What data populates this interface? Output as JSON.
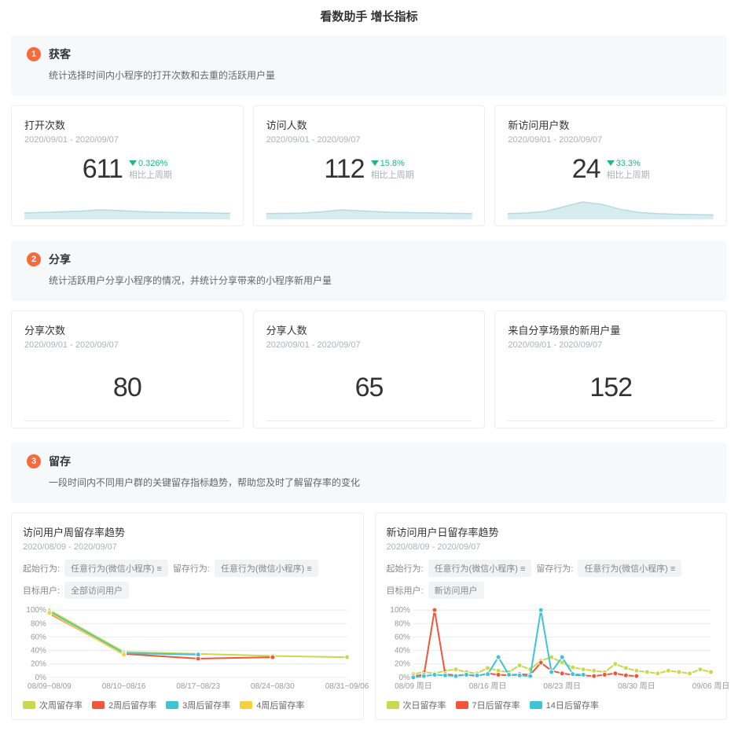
{
  "page_title": "看数助手 增长指标",
  "accent_color": "#f56b3d",
  "down_color": "#1eb980",
  "spark_fill": "#d6ecef",
  "spark_stroke": "#b4dbe0",
  "divider_color": "#e8eaed",
  "sections": {
    "s1": {
      "num": "1",
      "title": "获客",
      "desc": "统计选择时间内小程序的打开次数和去重的活跃用户量"
    },
    "s2": {
      "num": "2",
      "title": "分享",
      "desc": "统计活跃用户分享小程序的情况，并统计分享带来的小程序新用户量"
    },
    "s3": {
      "num": "3",
      "title": "留存",
      "desc": "一段时间内不同用户群的关键留存指标趋势，帮助您及时了解留存率的变化"
    }
  },
  "metrics_row1": {
    "m1": {
      "title": "打开次数",
      "date": "2020/09/01 - 2020/09/07",
      "value": "611",
      "pct": "0.326%",
      "cmp": "相比上周期",
      "spark": [
        0.2,
        0.22,
        0.24,
        0.26,
        0.3,
        0.28,
        0.25,
        0.23,
        0.22,
        0.21,
        0.2,
        0.19
      ]
    },
    "m2": {
      "title": "访问人数",
      "date": "2020/09/01 - 2020/09/07",
      "value": "112",
      "pct": "15.8%",
      "cmp": "相比上周期",
      "spark": [
        0.18,
        0.19,
        0.2,
        0.24,
        0.3,
        0.27,
        0.24,
        0.22,
        0.21,
        0.2,
        0.19,
        0.18
      ]
    },
    "m3": {
      "title": "新访问用户数",
      "date": "2020/09/01 - 2020/09/07",
      "value": "24",
      "pct": "33.3%",
      "cmp": "相比上周期",
      "spark": [
        0.18,
        0.2,
        0.25,
        0.4,
        0.55,
        0.48,
        0.32,
        0.22,
        0.18,
        0.16,
        0.15,
        0.14
      ]
    }
  },
  "metrics_row2": {
    "m1": {
      "title": "分享次数",
      "date": "2020/09/01 - 2020/09/07",
      "value": "80"
    },
    "m2": {
      "title": "分享人数",
      "date": "2020/09/01 - 2020/09/07",
      "value": "65"
    },
    "m3": {
      "title": "来自分享场景的新用户量",
      "date": "2020/09/01 - 2020/09/07",
      "value": "152"
    }
  },
  "chart1": {
    "title": "访问用户周留存率趋势",
    "date": "2020/08/09 - 2020/09/07",
    "filter_labels": {
      "f1": "起始行为:",
      "f2": "留存行为:",
      "f3": "目标用户:"
    },
    "filters": {
      "c1": "任意行为(微信小程序) ≡",
      "c2": "任意行为(微信小程序) ≡",
      "c3": "全部访问用户"
    },
    "y_ticks": [
      "100%",
      "80%",
      "60%",
      "40%",
      "20%",
      "0%"
    ],
    "x_labels": [
      "08/09~08/09",
      "08/10~08/16",
      "08/17~08/23",
      "08/24~08/30",
      "08/31~09/06"
    ],
    "series": [
      {
        "label": "次周留存率",
        "color": "#c9d94e",
        "values": [
          100,
          38,
          35,
          32,
          30
        ]
      },
      {
        "label": "2周后留存率",
        "color": "#f0563a",
        "values": [
          95,
          35,
          28,
          30,
          null
        ]
      },
      {
        "label": "3周后留存率",
        "color": "#3fc4d6",
        "values": [
          98,
          36,
          34,
          null,
          null
        ]
      },
      {
        "label": "4周后留存率",
        "color": "#f5d142",
        "values": [
          96,
          34,
          null,
          null,
          null
        ]
      }
    ],
    "grid_color": "#e8eaed",
    "axis_font_size": 10
  },
  "chart2": {
    "title": "新访问用户日留存率趋势",
    "date": "2020/08/09 - 2020/09/07",
    "filter_labels": {
      "f1": "起始行为:",
      "f2": "留存行为:",
      "f3": "目标用户:"
    },
    "filters": {
      "c1": "任意行为(微信小程序) ≡",
      "c2": "任意行为(微信小程序) ≡",
      "c3": "新访问用户"
    },
    "y_ticks": [
      "100%",
      "80%",
      "60%",
      "40%",
      "20%",
      "0%"
    ],
    "x_labels": [
      "08/09 周日",
      "08/16 周日",
      "08/23 周日",
      "08/30 周日",
      "09/06 周日"
    ],
    "series": [
      {
        "label": "次日留存率",
        "color": "#c9d94e",
        "values": [
          5,
          8,
          6,
          10,
          12,
          8,
          6,
          14,
          10,
          8,
          18,
          12,
          25,
          30,
          22,
          15,
          12,
          10,
          8,
          20,
          14,
          10,
          8,
          6,
          10,
          8,
          6,
          12,
          8
        ]
      },
      {
        "label": "7日后留存率",
        "color": "#f0563a",
        "values": [
          2,
          4,
          100,
          5,
          3,
          4,
          2,
          6,
          4,
          3,
          5,
          4,
          22,
          10,
          6,
          4,
          3,
          2,
          4,
          6,
          3,
          2,
          null,
          null,
          null,
          null,
          null,
          null,
          null
        ]
      },
      {
        "label": "14日后留存率",
        "color": "#3fc4d6",
        "values": [
          0,
          2,
          4,
          3,
          2,
          4,
          3,
          5,
          30,
          4,
          3,
          2,
          100,
          8,
          30,
          5,
          4,
          null,
          null,
          null,
          null,
          null,
          null,
          null,
          null,
          null,
          null,
          null,
          null
        ]
      }
    ],
    "grid_color": "#e8eaed",
    "axis_font_size": 10
  }
}
